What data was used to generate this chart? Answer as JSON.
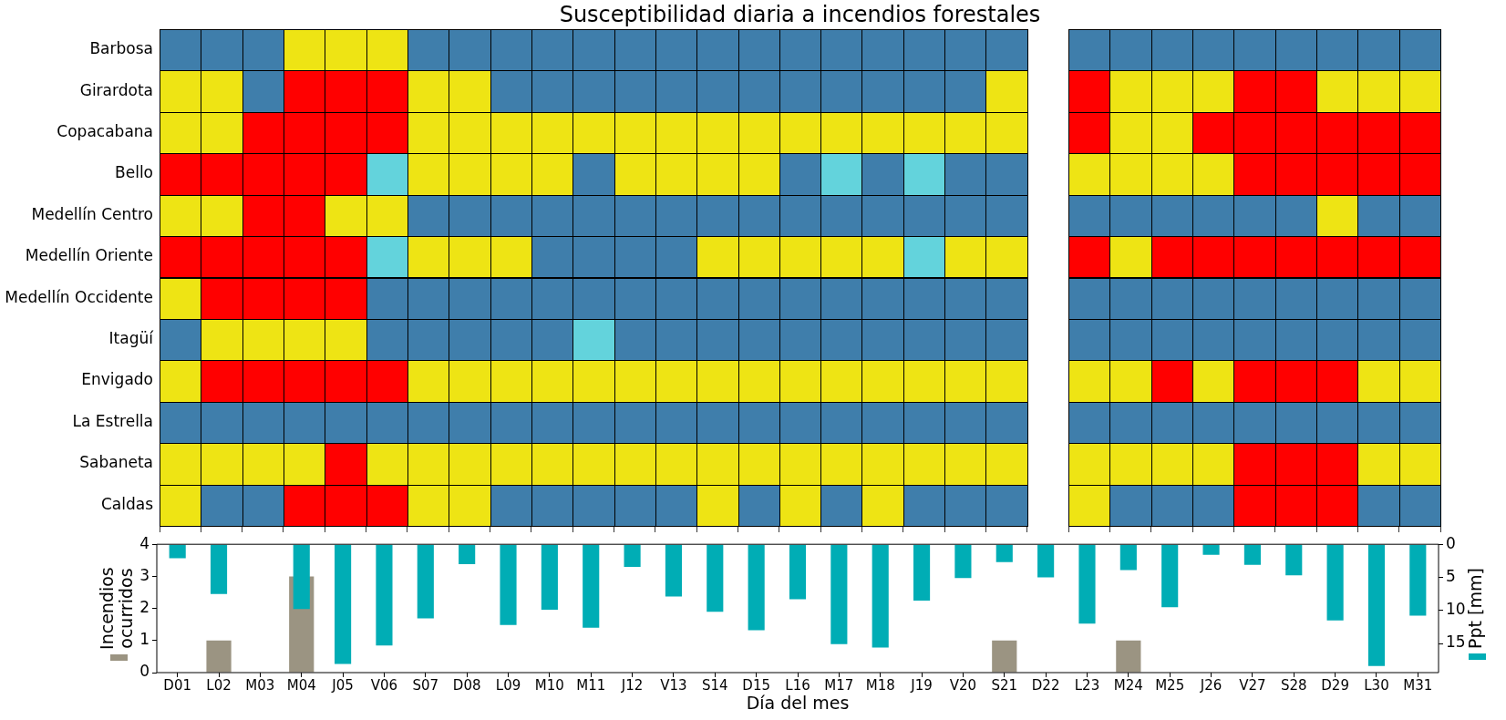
{
  "chart_data": [
    {
      "type": "other",
      "title": "Susceptibilidad diaria a incendios forestales",
      "categories": [
        null,
        null,
        null,
        null,
        null,
        null,
        null,
        null,
        null,
        null,
        null,
        null,
        null,
        null,
        null,
        null,
        null,
        null,
        null,
        null,
        null,
        null,
        null,
        null,
        null,
        null,
        null,
        null,
        null,
        null,
        null
      ],
      "y_categories": [
        "Barbosa",
        "Girardota",
        "Copacabana",
        "Bello",
        "Medellín Centro",
        "Medellín Oriente",
        "Medellín Occidente",
        "Itagüí",
        "Envigado",
        "La Estrella",
        "Sabaneta",
        "Caldas"
      ],
      "colors": [
        [
          "#3f7eab",
          "#3f7eab",
          "#3f7eab",
          "#eee414",
          "#eee414",
          "#eee414",
          "#3f7eab",
          "#3f7eab",
          "#3f7eab",
          "#3f7eab",
          "#3f7eab",
          "#3f7eab",
          "#3f7eab",
          "#3f7eab",
          "#3f7eab",
          "#3f7eab",
          "#3f7eab",
          "#3f7eab",
          "#3f7eab",
          "#3f7eab",
          "#3f7eab",
          null,
          "#3f7eab",
          "#3f7eab",
          "#3f7eab",
          "#3f7eab",
          "#3f7eab",
          "#3f7eab",
          "#3f7eab",
          "#3f7eab",
          "#3f7eab"
        ],
        [
          "#eee414",
          "#eee414",
          "#3f7eab",
          "#ff0000",
          "#ff0000",
          "#ff0000",
          "#eee414",
          "#eee414",
          "#3f7eab",
          "#3f7eab",
          "#3f7eab",
          "#3f7eab",
          "#3f7eab",
          "#3f7eab",
          "#3f7eab",
          "#3f7eab",
          "#3f7eab",
          "#3f7eab",
          "#3f7eab",
          "#3f7eab",
          "#eee414",
          null,
          "#ff0000",
          "#eee414",
          "#eee414",
          "#eee414",
          "#ff0000",
          "#ff0000",
          "#eee414",
          "#eee414",
          "#eee414"
        ],
        [
          "#eee414",
          "#eee414",
          "#ff0000",
          "#ff0000",
          "#ff0000",
          "#ff0000",
          "#eee414",
          "#eee414",
          "#eee414",
          "#eee414",
          "#eee414",
          "#eee414",
          "#eee414",
          "#eee414",
          "#eee414",
          "#eee414",
          "#eee414",
          "#eee414",
          "#eee414",
          "#eee414",
          "#eee414",
          null,
          "#ff0000",
          "#eee414",
          "#eee414",
          "#ff0000",
          "#ff0000",
          "#ff0000",
          "#ff0000",
          "#ff0000",
          "#ff0000"
        ],
        [
          "#ff0000",
          "#ff0000",
          "#ff0000",
          "#ff0000",
          "#ff0000",
          "#63d3dc",
          "#eee414",
          "#eee414",
          "#eee414",
          "#eee414",
          "#3f7eab",
          "#eee414",
          "#eee414",
          "#eee414",
          "#eee414",
          "#3f7eab",
          "#63d3dc",
          "#3f7eab",
          "#63d3dc",
          "#3f7eab",
          "#3f7eab",
          null,
          "#eee414",
          "#eee414",
          "#eee414",
          "#eee414",
          "#ff0000",
          "#ff0000",
          "#ff0000",
          "#ff0000",
          "#ff0000"
        ],
        [
          "#eee414",
          "#eee414",
          "#ff0000",
          "#ff0000",
          "#eee414",
          "#eee414",
          "#3f7eab",
          "#3f7eab",
          "#3f7eab",
          "#3f7eab",
          "#3f7eab",
          "#3f7eab",
          "#3f7eab",
          "#3f7eab",
          "#3f7eab",
          "#3f7eab",
          "#3f7eab",
          "#3f7eab",
          "#3f7eab",
          "#3f7eab",
          "#3f7eab",
          null,
          "#3f7eab",
          "#3f7eab",
          "#3f7eab",
          "#3f7eab",
          "#3f7eab",
          "#3f7eab",
          "#eee414",
          "#3f7eab",
          "#3f7eab"
        ],
        [
          "#ff0000",
          "#ff0000",
          "#ff0000",
          "#ff0000",
          "#ff0000",
          "#63d3dc",
          "#eee414",
          "#eee414",
          "#eee414",
          "#3f7eab",
          "#3f7eab",
          "#3f7eab",
          "#3f7eab",
          "#eee414",
          "#eee414",
          "#eee414",
          "#eee414",
          "#eee414",
          "#63d3dc",
          "#eee414",
          "#eee414",
          null,
          "#ff0000",
          "#eee414",
          "#ff0000",
          "#ff0000",
          "#ff0000",
          "#ff0000",
          "#ff0000",
          "#ff0000",
          "#ff0000"
        ],
        [
          "#eee414",
          "#ff0000",
          "#ff0000",
          "#ff0000",
          "#ff0000",
          "#3f7eab",
          "#3f7eab",
          "#3f7eab",
          "#3f7eab",
          "#3f7eab",
          "#3f7eab",
          "#3f7eab",
          "#3f7eab",
          "#3f7eab",
          "#3f7eab",
          "#3f7eab",
          "#3f7eab",
          "#3f7eab",
          "#3f7eab",
          "#3f7eab",
          "#3f7eab",
          null,
          "#3f7eab",
          "#3f7eab",
          "#3f7eab",
          "#3f7eab",
          "#3f7eab",
          "#3f7eab",
          "#3f7eab",
          "#3f7eab",
          "#3f7eab"
        ],
        [
          "#3f7eab",
          "#eee414",
          "#eee414",
          "#eee414",
          "#eee414",
          "#3f7eab",
          "#3f7eab",
          "#3f7eab",
          "#3f7eab",
          "#3f7eab",
          "#63d3dc",
          "#3f7eab",
          "#3f7eab",
          "#3f7eab",
          "#3f7eab",
          "#3f7eab",
          "#3f7eab",
          "#3f7eab",
          "#3f7eab",
          "#3f7eab",
          "#3f7eab",
          null,
          "#3f7eab",
          "#3f7eab",
          "#3f7eab",
          "#3f7eab",
          "#3f7eab",
          "#3f7eab",
          "#3f7eab",
          "#3f7eab",
          "#3f7eab"
        ],
        [
          "#eee414",
          "#ff0000",
          "#ff0000",
          "#ff0000",
          "#ff0000",
          "#ff0000",
          "#eee414",
          "#eee414",
          "#eee414",
          "#eee414",
          "#eee414",
          "#eee414",
          "#eee414",
          "#eee414",
          "#eee414",
          "#eee414",
          "#eee414",
          "#eee414",
          "#eee414",
          "#eee414",
          "#eee414",
          null,
          "#eee414",
          "#eee414",
          "#ff0000",
          "#eee414",
          "#ff0000",
          "#ff0000",
          "#ff0000",
          "#eee414",
          "#eee414"
        ],
        [
          "#3f7eab",
          "#3f7eab",
          "#3f7eab",
          "#3f7eab",
          "#3f7eab",
          "#3f7eab",
          "#3f7eab",
          "#3f7eab",
          "#3f7eab",
          "#3f7eab",
          "#3f7eab",
          "#3f7eab",
          "#3f7eab",
          "#3f7eab",
          "#3f7eab",
          "#3f7eab",
          "#3f7eab",
          "#3f7eab",
          "#3f7eab",
          "#3f7eab",
          "#3f7eab",
          null,
          "#3f7eab",
          "#3f7eab",
          "#3f7eab",
          "#3f7eab",
          "#3f7eab",
          "#3f7eab",
          "#3f7eab",
          "#3f7eab",
          "#3f7eab"
        ],
        [
          "#eee414",
          "#eee414",
          "#eee414",
          "#eee414",
          "#ff0000",
          "#eee414",
          "#eee414",
          "#eee414",
          "#eee414",
          "#eee414",
          "#eee414",
          "#eee414",
          "#eee414",
          "#eee414",
          "#eee414",
          "#eee414",
          "#eee414",
          "#eee414",
          "#eee414",
          "#eee414",
          "#eee414",
          null,
          "#eee414",
          "#eee414",
          "#eee414",
          "#eee414",
          "#ff0000",
          "#ff0000",
          "#ff0000",
          "#eee414",
          "#eee414"
        ],
        [
          "#eee414",
          "#3f7eab",
          "#3f7eab",
          "#ff0000",
          "#ff0000",
          "#ff0000",
          "#eee414",
          "#eee414",
          "#3f7eab",
          "#3f7eab",
          "#3f7eab",
          "#3f7eab",
          "#3f7eab",
          "#eee414",
          "#3f7eab",
          "#eee414",
          "#3f7eab",
          "#eee414",
          "#3f7eab",
          "#3f7eab",
          "#3f7eab",
          null,
          "#eee414",
          "#3f7eab",
          "#3f7eab",
          "#3f7eab",
          "#ff0000",
          "#ff0000",
          "#ff0000",
          "#3f7eab",
          "#3f7eab"
        ]
      ]
    },
    {
      "type": "bar",
      "xlabel": "Día del mes",
      "ylabel": "Incendios ocurridos",
      "y2label": "Ppt [mm]",
      "categories": [
        "D01",
        "L02",
        "M03",
        "M04",
        "J05",
        "V06",
        "S07",
        "D08",
        "L09",
        "M10",
        "M11",
        "J12",
        "V13",
        "S14",
        "D15",
        "L16",
        "M17",
        "M18",
        "J19",
        "V20",
        "S21",
        "D22",
        "L23",
        "M24",
        "M25",
        "J26",
        "V27",
        "S28",
        "D29",
        "L30",
        "M31"
      ],
      "ylim": [
        0,
        4
      ],
      "yticks": [
        0,
        1,
        2,
        3,
        4
      ],
      "y2lim": [
        19.4,
        0
      ],
      "y2ticks": [
        0,
        5,
        10,
        15
      ],
      "series": [
        {
          "color": "#9b9482",
          "values": [
            0,
            1,
            0,
            3,
            0,
            0,
            0,
            0,
            0,
            0,
            0,
            0,
            0,
            0,
            0,
            0,
            0,
            0,
            0,
            0,
            1,
            0,
            0,
            1,
            0,
            0,
            0,
            0,
            0,
            0,
            0
          ]
        },
        {
          "color": "#00adb5",
          "axis": "y2",
          "values": [
            2.1,
            7.5,
            0,
            9.8,
            18.1,
            15.3,
            11.2,
            3.0,
            12.2,
            9.9,
            12.6,
            3.4,
            7.9,
            10.2,
            13.0,
            8.3,
            15.1,
            15.6,
            8.5,
            5.1,
            2.7,
            5.0,
            12.0,
            3.9,
            9.5,
            1.6,
            3.1,
            4.7,
            11.5,
            18.4,
            10.8
          ]
        }
      ]
    }
  ]
}
